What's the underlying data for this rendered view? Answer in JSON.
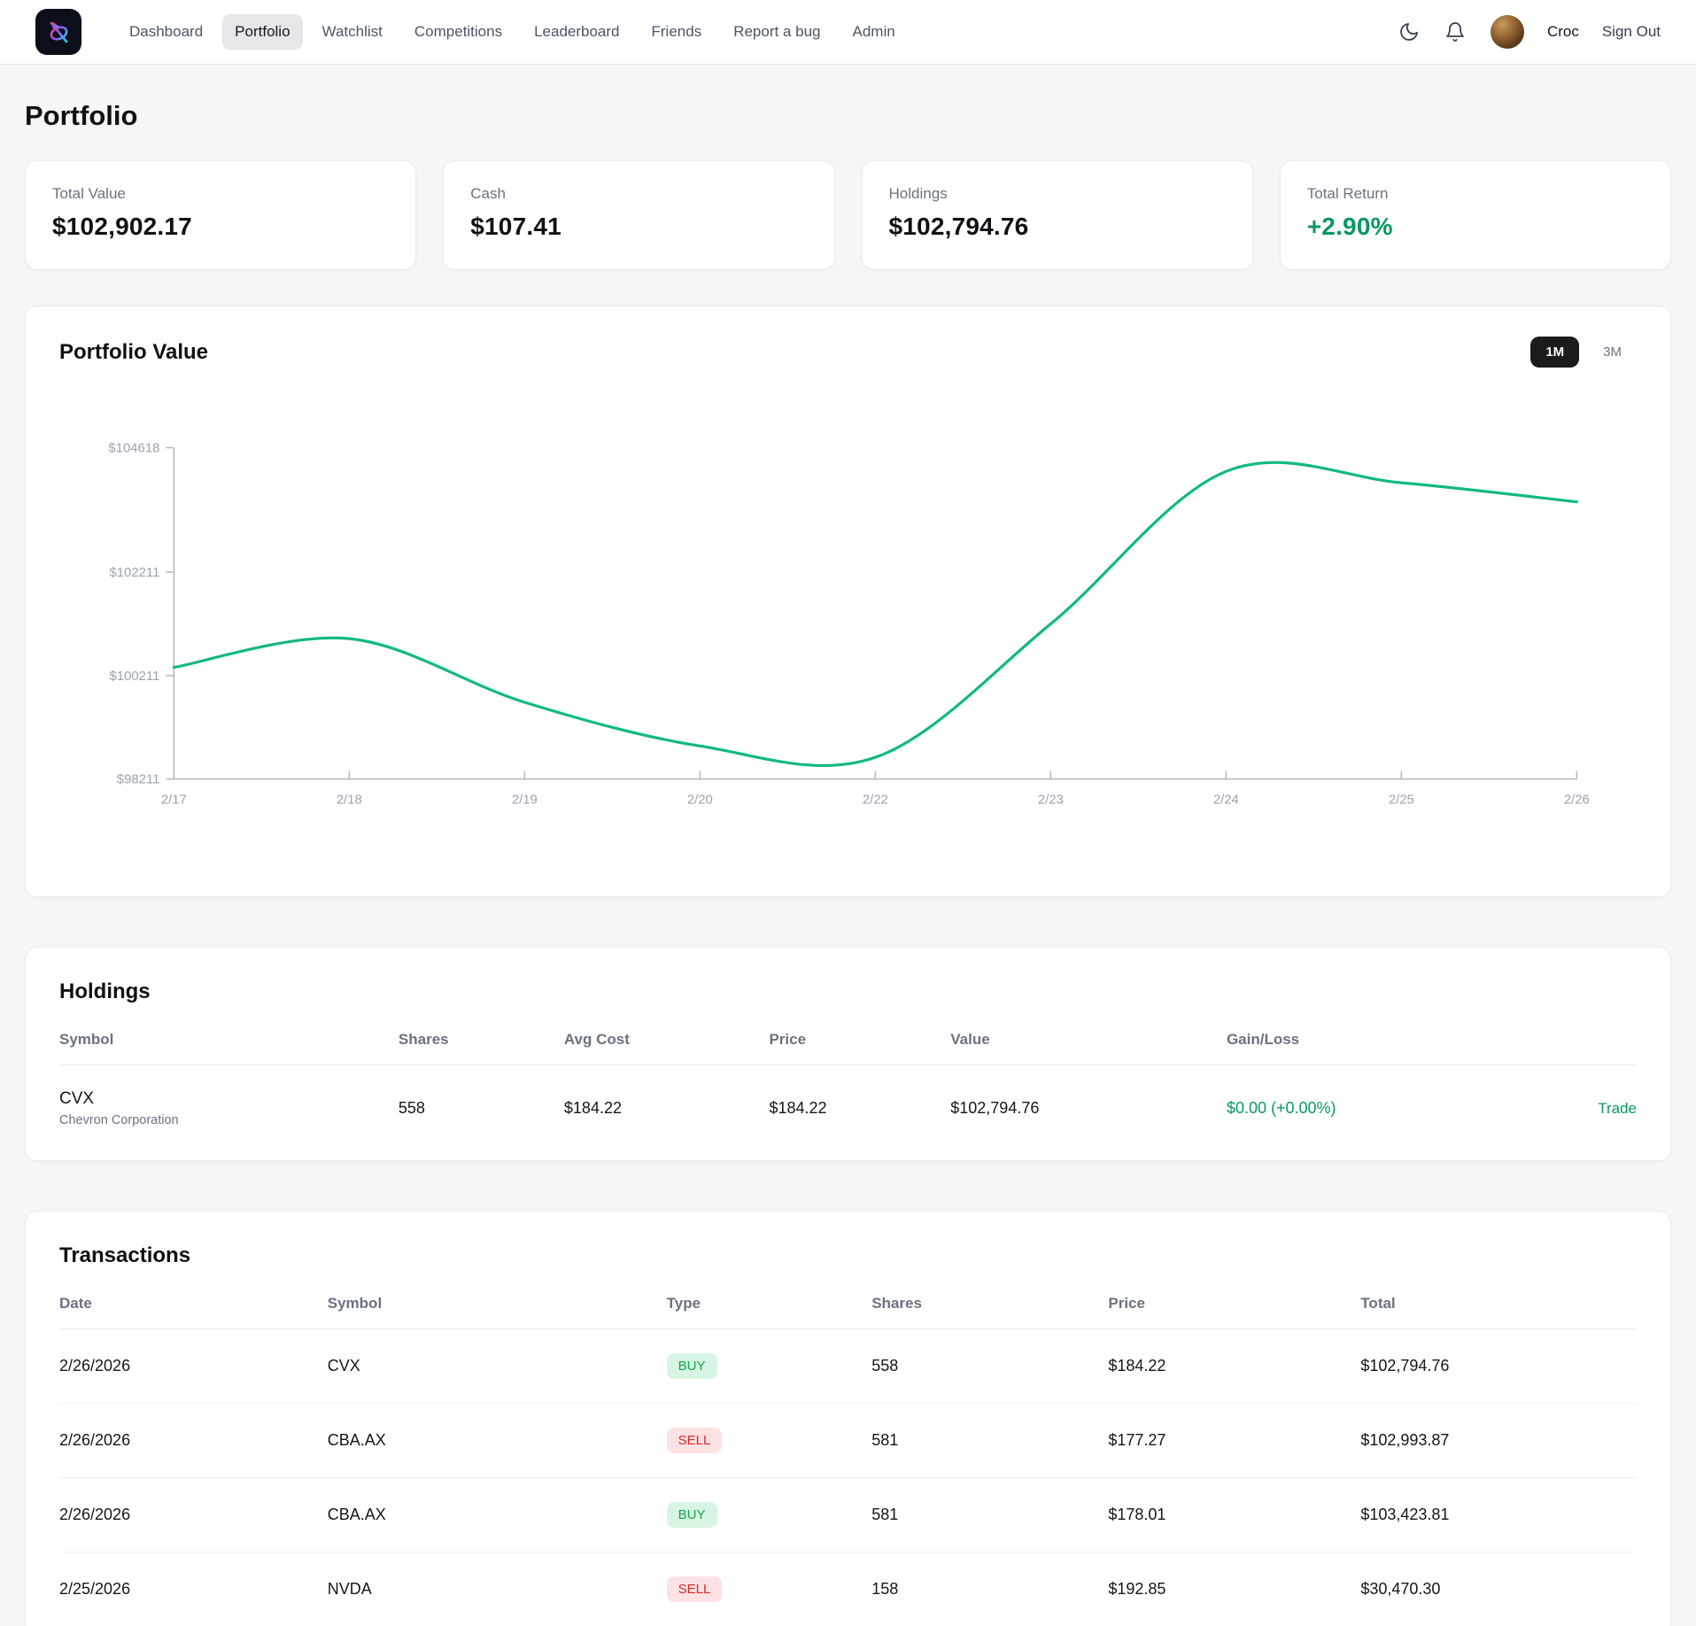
{
  "nav": {
    "items": [
      {
        "label": "Dashboard",
        "active": false
      },
      {
        "label": "Portfolio",
        "active": true
      },
      {
        "label": "Watchlist",
        "active": false
      },
      {
        "label": "Competitions",
        "active": false
      },
      {
        "label": "Leaderboard",
        "active": false
      },
      {
        "label": "Friends",
        "active": false
      },
      {
        "label": "Report a bug",
        "active": false
      },
      {
        "label": "Admin",
        "active": false
      }
    ],
    "user_name": "Croc",
    "sign_out_label": "Sign Out"
  },
  "page": {
    "title": "Portfolio"
  },
  "stats": [
    {
      "label": "Total Value",
      "value": "$102,902.17"
    },
    {
      "label": "Cash",
      "value": "$107.41"
    },
    {
      "label": "Holdings",
      "value": "$102,794.76"
    },
    {
      "label": "Total Return",
      "value": "+2.90%"
    }
  ],
  "chart_card": {
    "title": "Portfolio Value",
    "ranges": [
      {
        "label": "1M",
        "active": true
      },
      {
        "label": "3M",
        "active": false
      }
    ]
  },
  "chart_data": {
    "type": "line",
    "title": "Portfolio Value",
    "x": [
      "2/17",
      "2/18",
      "2/19",
      "2/20",
      "2/22",
      "2/23",
      "2/24",
      "2/25",
      "2/26"
    ],
    "values": [
      100370,
      100925,
      99695,
      98850,
      98630,
      101210,
      104160,
      103940,
      103570
    ],
    "y_ticks": [
      {
        "label": "$104618",
        "value": 104618
      },
      {
        "label": "$102211",
        "value": 102211
      },
      {
        "label": "$100211",
        "value": 100211
      },
      {
        "label": "$98211",
        "value": 98211
      }
    ],
    "ylim": [
      98211,
      104618
    ],
    "line_color": "#10b981",
    "axis_color": "#b3b7bd",
    "label_color": "#9ca3af",
    "grid": false,
    "legend": "none"
  },
  "holdings": {
    "title": "Holdings",
    "columns": [
      "Symbol",
      "Shares",
      "Avg Cost",
      "Price",
      "Value",
      "Gain/Loss"
    ],
    "rows": [
      {
        "symbol": "CVX",
        "company": "Chevron Corporation",
        "shares": "558",
        "avg_cost": "$184.22",
        "price": "$184.22",
        "value": "$102,794.76",
        "gain_loss": "$0.00 (+0.00%)",
        "action_label": "Trade"
      }
    ]
  },
  "transactions": {
    "title": "Transactions",
    "columns": [
      "Date",
      "Symbol",
      "Type",
      "Shares",
      "Price",
      "Total"
    ],
    "rows": [
      {
        "date": "2/26/2026",
        "symbol": "CVX",
        "type": "BUY",
        "shares": "558",
        "price": "$184.22",
        "total": "$102,794.76"
      },
      {
        "date": "2/26/2026",
        "symbol": "CBA.AX",
        "type": "SELL",
        "shares": "581",
        "price": "$177.27",
        "total": "$102,993.87"
      },
      {
        "date": "2/26/2026",
        "symbol": "CBA.AX",
        "type": "BUY",
        "shares": "581",
        "price": "$178.01",
        "total": "$103,423.81"
      },
      {
        "date": "2/25/2026",
        "symbol": "NVDA",
        "type": "SELL",
        "shares": "158",
        "price": "$192.85",
        "total": "$30,470.30"
      }
    ]
  },
  "colors": {
    "accent_green": "#089863",
    "chart_line": "#10b981",
    "buy_badge_bg": "#d7f5e2",
    "buy_badge_text": "#16a34a",
    "sell_badge_bg": "#fde2e3",
    "sell_badge_text": "#dc2626"
  }
}
